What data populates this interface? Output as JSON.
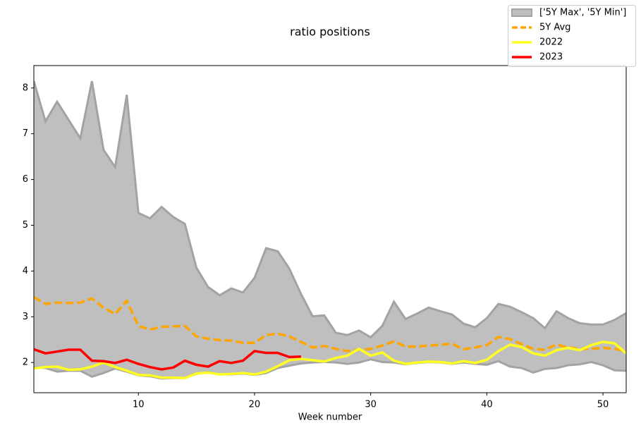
{
  "chart_data": {
    "type": "line",
    "title": "ratio positions",
    "xlabel": "Week number",
    "x": [
      1,
      2,
      3,
      4,
      5,
      6,
      7,
      8,
      9,
      10,
      11,
      12,
      13,
      14,
      15,
      16,
      17,
      18,
      19,
      20,
      21,
      22,
      23,
      24,
      25,
      26,
      27,
      28,
      29,
      30,
      31,
      32,
      33,
      34,
      35,
      36,
      37,
      38,
      39,
      40,
      41,
      42,
      43,
      44,
      45,
      46,
      47,
      48,
      49,
      50,
      51,
      52
    ],
    "xlim": [
      1,
      52
    ],
    "xticks": [
      10,
      20,
      30,
      40,
      50
    ],
    "ylim": [
      1.34,
      8.49
    ],
    "yticks": [
      2,
      3,
      4,
      5,
      6,
      7,
      8
    ],
    "band": {
      "name": "['5Y Max', '5Y Min']",
      "color": "#bfbfbf",
      "edge_color": "#a3a3a3",
      "upper": [
        8.15,
        7.27,
        7.7,
        7.3,
        6.9,
        8.15,
        6.65,
        6.27,
        7.85,
        5.27,
        5.15,
        5.4,
        5.18,
        5.03,
        4.07,
        3.65,
        3.47,
        3.62,
        3.53,
        3.85,
        4.5,
        4.43,
        4.05,
        3.5,
        3.01,
        3.03,
        2.65,
        2.6,
        2.7,
        2.55,
        2.8,
        3.33,
        2.95,
        3.07,
        3.2,
        3.12,
        3.05,
        2.85,
        2.77,
        2.97,
        3.28,
        3.22,
        3.1,
        2.97,
        2.75,
        3.12,
        2.97,
        2.86,
        2.83,
        2.83,
        2.93,
        3.08
      ],
      "lower": [
        1.9,
        1.88,
        1.8,
        1.82,
        1.82,
        1.69,
        1.77,
        1.87,
        1.8,
        1.72,
        1.7,
        1.65,
        1.66,
        1.66,
        1.75,
        1.79,
        1.74,
        1.74,
        1.76,
        1.73,
        1.77,
        1.88,
        1.93,
        1.98,
        2.0,
        2.01,
        2.0,
        1.97,
        2.0,
        2.07,
        2.01,
        2.0,
        1.96,
        1.99,
        2.01,
        2.0,
        1.97,
        2.0,
        1.97,
        1.95,
        2.03,
        1.91,
        1.88,
        1.78,
        1.86,
        1.88,
        1.94,
        1.96,
        2.01,
        1.94,
        1.83,
        1.82
      ]
    },
    "series": [
      {
        "name": "5Y Avg",
        "color": "#ffa500",
        "dashed": true,
        "values": [
          3.43,
          3.28,
          3.31,
          3.3,
          3.31,
          3.4,
          3.2,
          3.06,
          3.35,
          2.8,
          2.72,
          2.78,
          2.79,
          2.8,
          2.57,
          2.52,
          2.49,
          2.48,
          2.43,
          2.43,
          2.6,
          2.63,
          2.57,
          2.45,
          2.33,
          2.36,
          2.3,
          2.25,
          2.28,
          2.3,
          2.37,
          2.46,
          2.35,
          2.35,
          2.37,
          2.39,
          2.41,
          2.29,
          2.33,
          2.38,
          2.56,
          2.51,
          2.4,
          2.3,
          2.28,
          2.39,
          2.33,
          2.3,
          2.3,
          2.32,
          2.3,
          2.25
        ]
      },
      {
        "name": "2022",
        "color": "#ffff22",
        "dashed": false,
        "values": [
          1.87,
          1.9,
          1.91,
          1.84,
          1.85,
          1.91,
          2.0,
          1.9,
          1.82,
          1.73,
          1.72,
          1.67,
          1.67,
          1.66,
          1.76,
          1.78,
          1.74,
          1.75,
          1.77,
          1.74,
          1.8,
          1.92,
          2.05,
          2.08,
          2.05,
          2.02,
          2.1,
          2.15,
          2.3,
          2.15,
          2.22,
          2.04,
          1.97,
          2.0,
          2.02,
          2.01,
          1.98,
          2.03,
          1.99,
          2.06,
          2.25,
          2.39,
          2.34,
          2.2,
          2.15,
          2.27,
          2.32,
          2.27,
          2.38,
          2.45,
          2.42,
          2.2
        ]
      },
      {
        "name": "2023",
        "color": "#ff0000",
        "dashed": false,
        "values": [
          2.29,
          2.2,
          2.24,
          2.28,
          2.28,
          2.04,
          2.03,
          1.99,
          2.06,
          1.97,
          1.9,
          1.85,
          1.89,
          2.04,
          1.95,
          1.91,
          2.03,
          1.99,
          2.04,
          2.25,
          2.21,
          2.21,
          2.12,
          2.13,
          null,
          null,
          null,
          null,
          null,
          null,
          null,
          null,
          null,
          null,
          null,
          null,
          null,
          null,
          null,
          null,
          null,
          null,
          null,
          null,
          null,
          null,
          null,
          null,
          null,
          null,
          null,
          null
        ]
      }
    ]
  }
}
